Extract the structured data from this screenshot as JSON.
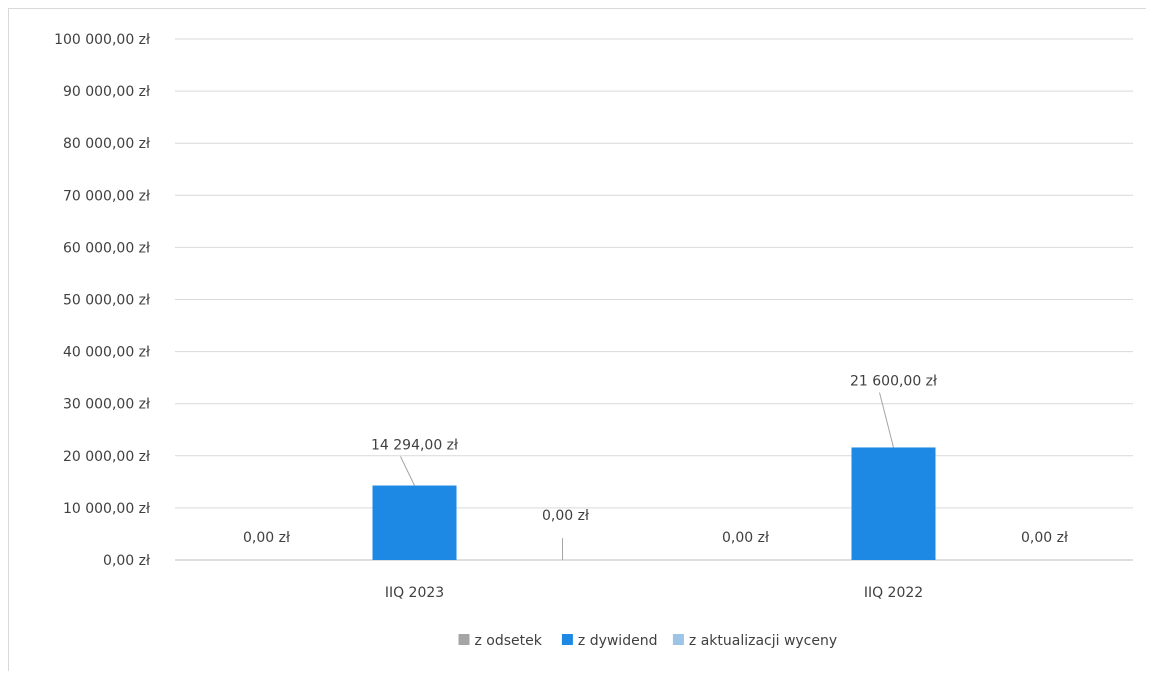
{
  "chart_data": {
    "type": "bar",
    "categories": [
      "IIQ 2023",
      "IIQ 2022"
    ],
    "series": [
      {
        "name": "z odsetek",
        "color": "#a5a5a5",
        "values": [
          0,
          0
        ],
        "labels": [
          "0,00 zł",
          "0,00 zł"
        ]
      },
      {
        "name": "z dywidend",
        "color": "#1e88e5",
        "values": [
          14294,
          21600
        ],
        "labels": [
          "14 294,00 zł",
          "21 600,00 zł"
        ]
      },
      {
        "name": "z aktualizacji wyceny",
        "color": "#9dc3e6",
        "values": [
          0,
          0
        ],
        "labels": [
          "0,00 zł",
          "0,00 zł"
        ]
      }
    ],
    "ylim": [
      0,
      100000
    ],
    "yticks": [
      0,
      10000,
      20000,
      30000,
      40000,
      50000,
      60000,
      70000,
      80000,
      90000,
      100000
    ],
    "ytick_labels": [
      "0,00 zł",
      "10 000,00 zł",
      "20 000,00 zł",
      "30 000,00 zł",
      "40 000,00 zł",
      "50 000,00 zł",
      "60 000,00 zł",
      "70 000,00 zł",
      "80 000,00 zł",
      "90 000,00 zł",
      "100 000,00 zł"
    ],
    "grid": true,
    "legend_position": "bottom",
    "title": "",
    "xlabel": "",
    "ylabel": ""
  }
}
